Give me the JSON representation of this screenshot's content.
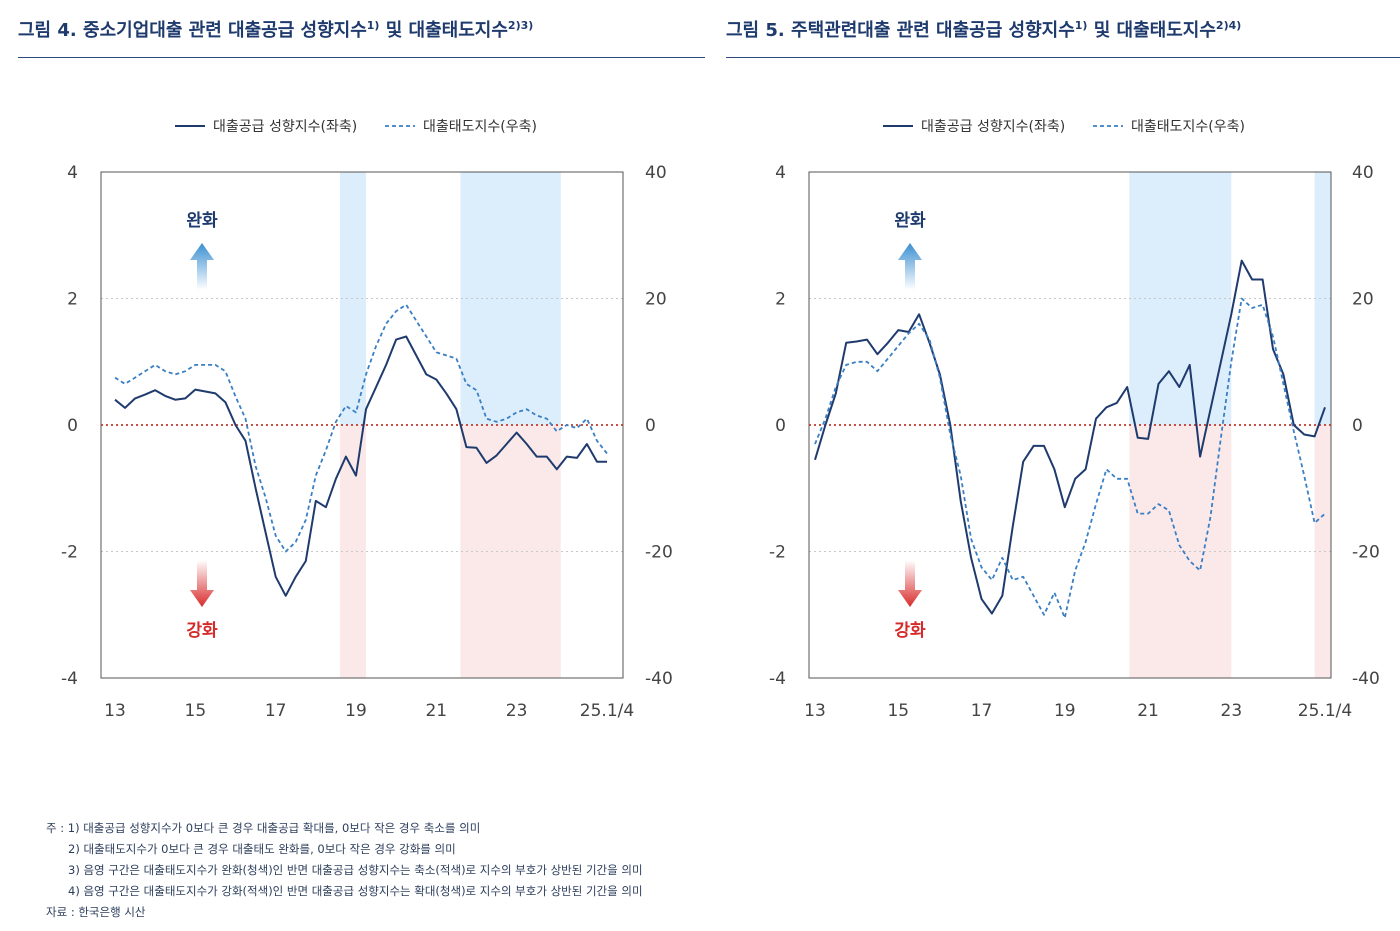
{
  "colors": {
    "solid": "#1f3b6e",
    "dashed": "#3a7fc4",
    "zero_line": "#c0392b",
    "grid": "#c8c8c8",
    "blue_shade": "#dceefc",
    "red_shade": "#fbe9ea",
    "ease_text": "#1f3b6e",
    "tight_text": "#d42a2a",
    "title": "#1f3b6e"
  },
  "charts": [
    {
      "title": "그림 4. 중소기업대출 관련 대출공급 성향지수",
      "title_sup1": "1)",
      "title_mid": " 및 대출태도지수",
      "title_sup2": "2)3)",
      "legend": {
        "solid": "대출공급 성향지수(좌축)",
        "dashed": "대출태도지수(우축)"
      },
      "annotation_ease": "완화",
      "annotation_tight": "강화"
    },
    {
      "title": "그림 5. 주택관련대출 관련 대출공급 성향지수",
      "title_sup1": "1)",
      "title_mid": " 및 대출태도지수",
      "title_sup2": "2)4)",
      "legend": {
        "solid": "대출공급 성향지수(좌축)",
        "dashed": "대출태도지수(우축)"
      },
      "annotation_ease": "완화",
      "annotation_tight": "강화"
    }
  ],
  "chart_data": [
    {
      "type": "line",
      "x_ticks": [
        "13",
        "15",
        "17",
        "19",
        "21",
        "23",
        "25.1/4"
      ],
      "x_range": [
        2013.0,
        2025.25
      ],
      "yleft_ticks": [
        "4",
        "2",
        "0",
        "-2",
        "-4"
      ],
      "yright_ticks": [
        "40",
        "20",
        "0",
        "-20",
        "-40"
      ],
      "ylim_left": [
        -4,
        4
      ],
      "ylim_right": [
        -40,
        40
      ],
      "grid": "horizontal dotted at ±2 / ±20; red dotted zero line",
      "shaded_periods": [
        [
          2018.6,
          2019.25
        ],
        [
          2021.6,
          2024.1
        ]
      ],
      "series": [
        {
          "name": "대출공급 성향지수(좌축)",
          "axis": "left",
          "style": "solid",
          "x": [
            2013.0,
            2013.25,
            2013.5,
            2013.75,
            2014.0,
            2014.25,
            2014.5,
            2014.75,
            2015.0,
            2015.25,
            2015.5,
            2015.75,
            2016.0,
            2016.25,
            2016.5,
            2016.75,
            2017.0,
            2017.25,
            2017.5,
            2017.75,
            2018.0,
            2018.25,
            2018.5,
            2018.75,
            2019.0,
            2019.25,
            2019.5,
            2019.75,
            2020.0,
            2020.25,
            2020.5,
            2020.75,
            2021.0,
            2021.25,
            2021.5,
            2021.75,
            2022.0,
            2022.25,
            2022.5,
            2022.75,
            2023.0,
            2023.25,
            2023.5,
            2023.75,
            2024.0,
            2024.25,
            2024.5,
            2024.75,
            2025.0,
            2025.25
          ],
          "values": [
            0.4,
            0.27,
            0.42,
            0.48,
            0.55,
            0.46,
            0.4,
            0.42,
            0.56,
            0.53,
            0.5,
            0.36,
            0.0,
            -0.25,
            -1.0,
            -1.7,
            -2.4,
            -2.7,
            -2.4,
            -2.15,
            -1.2,
            -1.3,
            -0.85,
            -0.5,
            -0.8,
            0.25,
            0.6,
            0.95,
            1.35,
            1.4,
            1.1,
            0.8,
            0.72,
            0.5,
            0.25,
            -0.35,
            -0.36,
            -0.6,
            -0.48,
            -0.3,
            -0.12,
            -0.3,
            -0.5,
            -0.5,
            -0.7,
            -0.5,
            -0.52,
            -0.3,
            -0.58,
            -0.58
          ]
        },
        {
          "name": "대출태도지수(우축)",
          "axis": "right",
          "style": "dashed",
          "x": [
            2013.0,
            2013.25,
            2013.5,
            2013.75,
            2014.0,
            2014.25,
            2014.5,
            2014.75,
            2015.0,
            2015.25,
            2015.5,
            2015.75,
            2016.0,
            2016.25,
            2016.5,
            2016.75,
            2017.0,
            2017.25,
            2017.5,
            2017.75,
            2018.0,
            2018.25,
            2018.5,
            2018.75,
            2019.0,
            2019.25,
            2019.5,
            2019.75,
            2020.0,
            2020.25,
            2020.5,
            2020.75,
            2021.0,
            2021.25,
            2021.5,
            2021.75,
            2022.0,
            2022.25,
            2022.5,
            2022.75,
            2023.0,
            2023.25,
            2023.5,
            2023.75,
            2024.0,
            2024.25,
            2024.5,
            2024.75,
            2025.0,
            2025.25
          ],
          "values": [
            7.5,
            6.5,
            7.5,
            8.5,
            9.5,
            8.5,
            8.0,
            8.5,
            9.5,
            9.5,
            9.5,
            8.5,
            4.5,
            1.0,
            -6.5,
            -11.5,
            -17.5,
            -20.0,
            -18.5,
            -15.0,
            -8.0,
            -4.0,
            0.5,
            3.0,
            2.0,
            8.0,
            12.5,
            16.0,
            18.0,
            19.0,
            16.5,
            14.0,
            11.5,
            11.0,
            10.5,
            6.5,
            5.5,
            1.0,
            0.5,
            1.0,
            2.0,
            2.5,
            1.5,
            1.0,
            -1.0,
            0.0,
            -0.5,
            1.0,
            -2.5,
            -4.5
          ]
        }
      ]
    },
    {
      "type": "line",
      "x_ticks": [
        "13",
        "15",
        "17",
        "19",
        "21",
        "23",
        "25.1/4"
      ],
      "x_range": [
        2013.0,
        2025.25
      ],
      "yleft_ticks": [
        "4",
        "2",
        "0",
        "-2",
        "-4"
      ],
      "yright_ticks": [
        "40",
        "20",
        "0",
        "-20",
        "-40"
      ],
      "ylim_left": [
        -4,
        4
      ],
      "ylim_right": [
        -40,
        40
      ],
      "grid": "horizontal dotted at ±2 / ±20; red dotted zero line",
      "shaded_periods": [
        [
          2020.55,
          2023.0
        ],
        [
          2025.0,
          2025.4
        ]
      ],
      "series": [
        {
          "name": "대출공급 성향지수(좌축)",
          "axis": "left",
          "style": "solid",
          "x": [
            2013.0,
            2013.25,
            2013.5,
            2013.75,
            2014.0,
            2014.25,
            2014.5,
            2014.75,
            2015.0,
            2015.25,
            2015.5,
            2015.75,
            2016.0,
            2016.25,
            2016.5,
            2016.75,
            2017.0,
            2017.25,
            2017.5,
            2017.75,
            2018.0,
            2018.25,
            2018.5,
            2018.75,
            2019.0,
            2019.25,
            2019.5,
            2019.75,
            2020.0,
            2020.25,
            2020.5,
            2020.75,
            2021.0,
            2021.25,
            2021.5,
            2021.75,
            2022.0,
            2022.25,
            2022.5,
            2022.75,
            2023.0,
            2023.25,
            2023.5,
            2023.75,
            2024.0,
            2024.25,
            2024.5,
            2024.75,
            2025.0,
            2025.25
          ],
          "values": [
            -0.55,
            0.0,
            0.5,
            1.3,
            1.32,
            1.35,
            1.12,
            1.3,
            1.5,
            1.47,
            1.75,
            1.3,
            0.8,
            0.0,
            -1.2,
            -2.1,
            -2.75,
            -2.98,
            -2.7,
            -1.6,
            -0.58,
            -0.33,
            -0.33,
            -0.7,
            -1.3,
            -0.85,
            -0.7,
            0.1,
            0.28,
            0.35,
            0.6,
            -0.2,
            -0.22,
            0.65,
            0.85,
            0.6,
            0.95,
            -0.5,
            0.25,
            1.0,
            1.75,
            2.6,
            2.3,
            2.3,
            1.2,
            0.8,
            0.0,
            -0.15,
            -0.18,
            0.28
          ]
        },
        {
          "name": "대출태도지수(우축)",
          "axis": "right",
          "style": "dashed",
          "x": [
            2013.0,
            2013.25,
            2013.5,
            2013.75,
            2014.0,
            2014.25,
            2014.5,
            2014.75,
            2015.0,
            2015.25,
            2015.5,
            2015.75,
            2016.0,
            2016.25,
            2016.5,
            2016.75,
            2017.0,
            2017.25,
            2017.5,
            2017.75,
            2018.0,
            2018.25,
            2018.5,
            2018.75,
            2019.0,
            2019.25,
            2019.5,
            2019.75,
            2020.0,
            2020.25,
            2020.5,
            2020.75,
            2021.0,
            2021.25,
            2021.5,
            2021.75,
            2022.0,
            2022.25,
            2022.5,
            2022.75,
            2023.0,
            2023.25,
            2023.5,
            2023.75,
            2024.0,
            2024.25,
            2024.5,
            2024.75,
            2025.0,
            2025.25
          ],
          "values": [
            -3.0,
            1.0,
            6.0,
            9.5,
            10.0,
            10.0,
            8.5,
            10.5,
            12.5,
            14.5,
            16.0,
            13.5,
            7.5,
            -1.5,
            -8.0,
            -18.0,
            -22.5,
            -24.5,
            -21.0,
            -24.5,
            -24.0,
            -27.0,
            -30.0,
            -26.5,
            -30.5,
            -23.0,
            -18.5,
            -12.5,
            -7.0,
            -8.5,
            -8.5,
            -14.0,
            -14.0,
            -12.5,
            -13.5,
            -19.0,
            -21.5,
            -23.0,
            -14.5,
            -2.0,
            10.0,
            20.0,
            18.5,
            19.0,
            14.0,
            6.5,
            -1.0,
            -8.0,
            -15.5,
            -14.0
          ]
        }
      ]
    }
  ],
  "notes": [
    "주 : 1) 대출공급 성향지수가 0보다 큰 경우 대출공급 확대를, 0보다 작은 경우 축소를 의미",
    "2) 대출태도지수가 0보다 큰 경우 대출태도 완화를, 0보다 작은 경우 강화를 의미",
    "3) 음영 구간은 대출태도지수가 완화(청색)인 반면 대출공급 성향지수는 축소(적색)로 지수의 부호가 상반된 기간을 의미",
    "4) 음영 구간은 대출태도지수가 강화(적색)인 반면 대출공급 성향지수는 확대(청색)로 지수의 부호가 상반된 기간을 의미",
    "자료 : 한국은행 시산"
  ]
}
